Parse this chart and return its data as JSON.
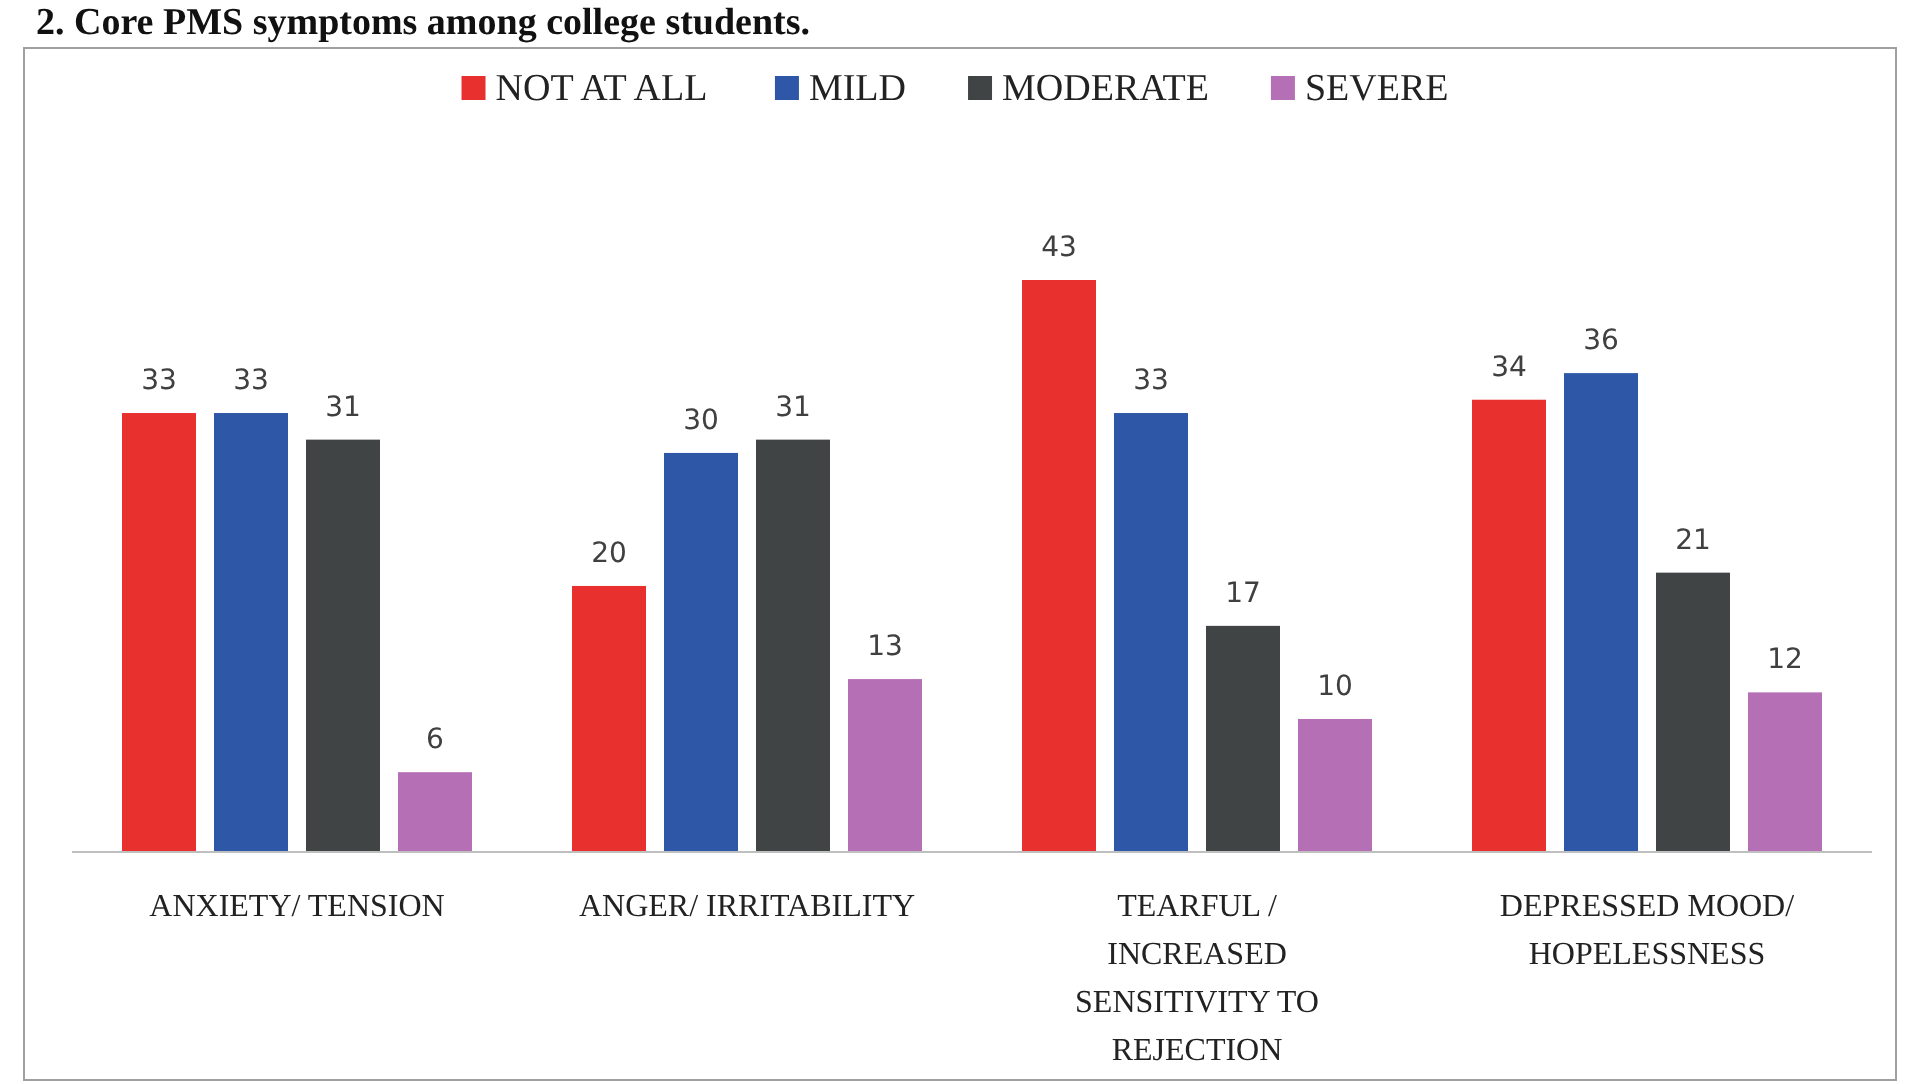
{
  "chart_data": {
    "type": "bar",
    "title": "2. Core PMS symptoms among college students.",
    "categories": [
      "ANXIETY/ TENSION",
      "ANGER/ IRRITABILITY",
      "TEARFUL / INCREASED SENSITIVITY TO REJECTION",
      "DEPRESSED MOOD/ HOPELESSNESS"
    ],
    "series": [
      {
        "name": "NOT AT ALL",
        "color": "#e8312f",
        "values": [
          33,
          20,
          43,
          34
        ]
      },
      {
        "name": "MILD",
        "color": "#2e57a8",
        "values": [
          33,
          30,
          33,
          36
        ]
      },
      {
        "name": "MODERATE",
        "color": "#404444",
        "values": [
          31,
          31,
          17,
          21
        ]
      },
      {
        "name": "SEVERE",
        "color": "#b56fb5",
        "values": [
          6,
          13,
          10,
          12
        ]
      }
    ],
    "data_labels": true,
    "legend": "top"
  }
}
